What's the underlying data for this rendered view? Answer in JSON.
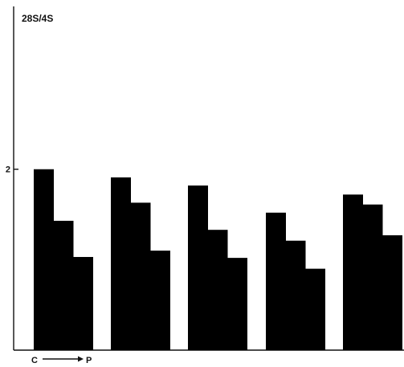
{
  "chart_data": {
    "type": "bar",
    "title": "28S/4S",
    "xlabel": "",
    "ylabel": "",
    "ylim": [
      0,
      3.8
    ],
    "yticks": [
      2
    ],
    "ytick_labels": [
      "2"
    ],
    "grid": false,
    "legend": "none",
    "bar_color": "#000000",
    "axis_color": "#111111",
    "groups": [
      {
        "values": [
          2.0,
          1.43,
          1.03
        ]
      },
      {
        "values": [
          1.91,
          1.63,
          1.1
        ]
      },
      {
        "values": [
          1.82,
          1.33,
          1.02
        ]
      },
      {
        "values": [
          1.52,
          1.21,
          0.9
        ]
      },
      {
        "values": [
          1.72,
          1.61,
          1.27
        ]
      }
    ],
    "direction_label": {
      "from": "C",
      "to": "P"
    }
  }
}
